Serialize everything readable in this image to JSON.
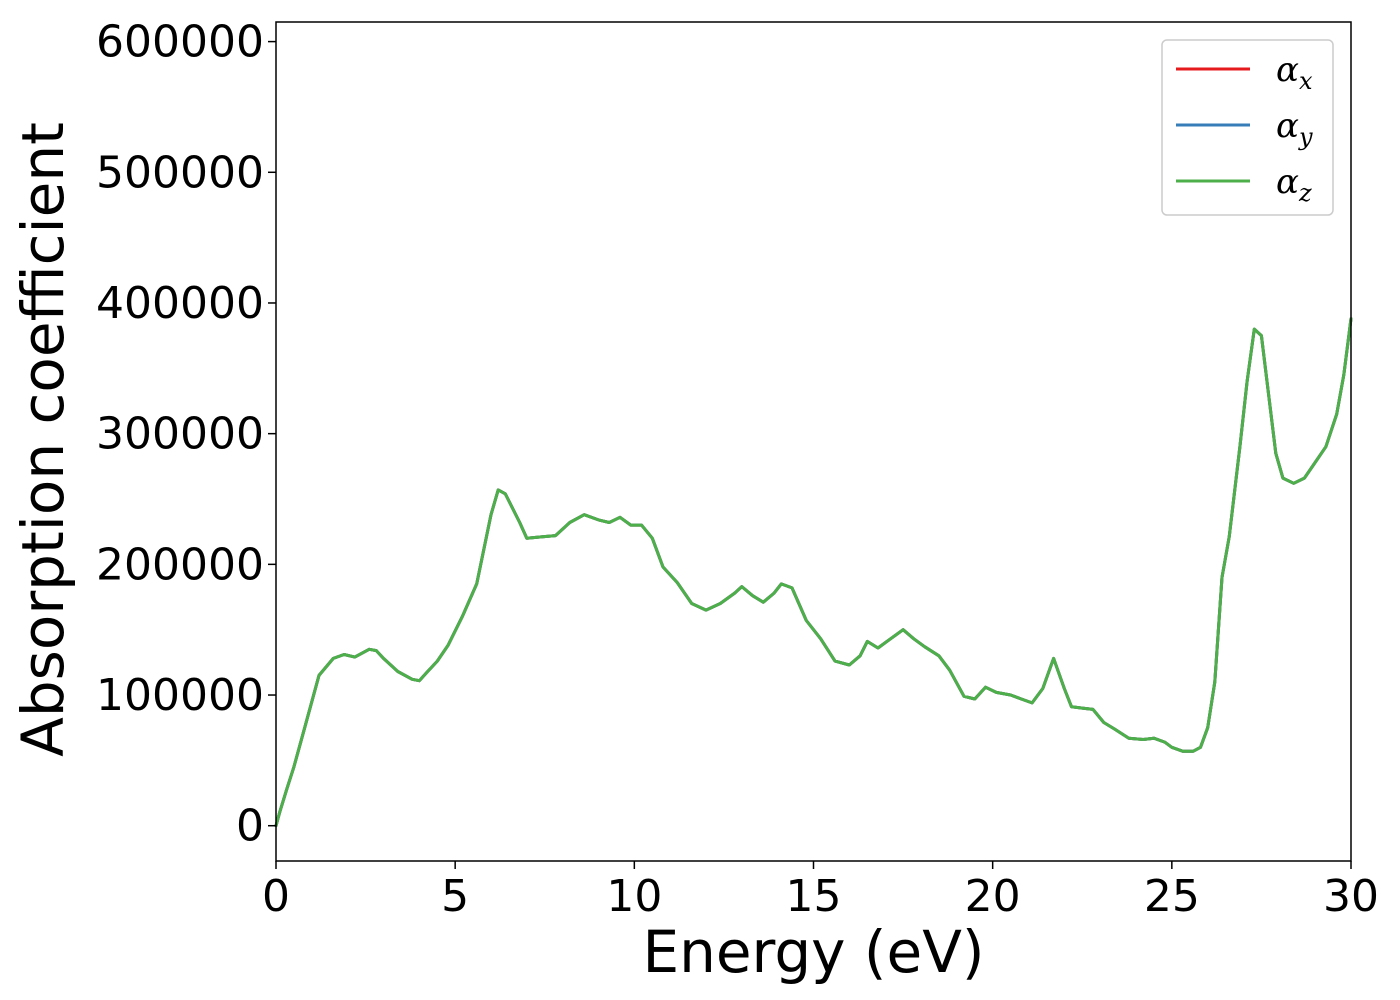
{
  "chart_data": {
    "type": "line",
    "title": "",
    "xlabel": "Energy (eV)",
    "ylabel": "Absorption coefficient",
    "xlim": [
      0,
      30
    ],
    "ylim": [
      -27000,
      615000
    ],
    "xticks": [
      0,
      5,
      10,
      15,
      20,
      25,
      30
    ],
    "yticks": [
      0,
      100000,
      200000,
      300000,
      400000,
      500000,
      600000
    ],
    "grid": false,
    "legend_position": "top-right",
    "x": [
      0,
      0.1,
      0.3,
      0.5,
      0.8,
      1.2,
      1.6,
      1.9,
      2.2,
      2.4,
      2.6,
      2.8,
      3.0,
      3.4,
      3.8,
      4.0,
      4.2,
      4.5,
      4.8,
      5.2,
      5.6,
      6.0,
      6.2,
      6.4,
      6.8,
      7.0,
      7.4,
      7.8,
      8.2,
      8.6,
      9.0,
      9.3,
      9.6,
      9.9,
      10.2,
      10.5,
      10.8,
      11.2,
      11.6,
      12.0,
      12.4,
      12.8,
      13.0,
      13.3,
      13.6,
      13.9,
      14.1,
      14.4,
      14.8,
      15.2,
      15.6,
      16.0,
      16.3,
      16.5,
      16.8,
      17.1,
      17.5,
      17.8,
      18.1,
      18.5,
      18.8,
      19.2,
      19.5,
      19.8,
      20.1,
      20.5,
      20.8,
      21.1,
      21.4,
      21.7,
      22.0,
      22.2,
      22.5,
      22.8,
      23.1,
      23.4,
      23.8,
      24.2,
      24.5,
      24.8,
      25.0,
      25.3,
      25.6,
      25.8,
      26.0,
      26.2,
      26.4,
      26.6,
      26.9,
      27.1,
      27.3,
      27.5,
      27.7,
      27.9,
      28.1,
      28.4,
      28.7,
      29.0,
      29.3,
      29.6,
      29.8,
      30.0
    ],
    "series": [
      {
        "name": "α_x",
        "color": "#e41a1c",
        "values": [
          0,
          10000,
          28000,
          45000,
          75000,
          115000,
          128000,
          131000,
          129000,
          132000,
          135000,
          134000,
          128000,
          118000,
          112000,
          111000,
          117000,
          126000,
          138000,
          160000,
          185000,
          238000,
          257000,
          254000,
          232000,
          220000,
          221000,
          222000,
          232000,
          238000,
          234000,
          232000,
          236000,
          230000,
          230000,
          220000,
          198000,
          186000,
          170000,
          165000,
          170000,
          178000,
          183000,
          176000,
          171000,
          178000,
          185000,
          182000,
          157000,
          143000,
          126000,
          123000,
          130000,
          141000,
          136000,
          142000,
          150000,
          143000,
          137000,
          130000,
          119000,
          99000,
          97000,
          106000,
          102000,
          100000,
          97000,
          94000,
          105000,
          128000,
          105000,
          91000,
          90000,
          89000,
          79000,
          74000,
          67000,
          66000,
          67000,
          64000,
          60000,
          57000,
          57000,
          60000,
          75000,
          110000,
          190000,
          221000,
          290000,
          340000,
          380000,
          375000,
          330000,
          285000,
          266000,
          262000,
          266000,
          278000,
          290000,
          315000,
          345000,
          388000
        ]
      },
      {
        "name": "α_y",
        "color": "#377eb8",
        "values": [
          0,
          10000,
          28000,
          45000,
          75000,
          115000,
          128000,
          131000,
          129000,
          132000,
          135000,
          134000,
          128000,
          118000,
          112000,
          111000,
          117000,
          126000,
          138000,
          160000,
          185000,
          238000,
          257000,
          254000,
          232000,
          220000,
          221000,
          222000,
          232000,
          238000,
          234000,
          232000,
          236000,
          230000,
          230000,
          220000,
          198000,
          186000,
          170000,
          165000,
          170000,
          178000,
          183000,
          176000,
          171000,
          178000,
          185000,
          182000,
          157000,
          143000,
          126000,
          123000,
          130000,
          141000,
          136000,
          142000,
          150000,
          143000,
          137000,
          130000,
          119000,
          99000,
          97000,
          106000,
          102000,
          100000,
          97000,
          94000,
          105000,
          128000,
          105000,
          91000,
          90000,
          89000,
          79000,
          74000,
          67000,
          66000,
          67000,
          64000,
          60000,
          57000,
          57000,
          60000,
          75000,
          110000,
          190000,
          221000,
          290000,
          340000,
          380000,
          375000,
          330000,
          285000,
          266000,
          262000,
          266000,
          278000,
          290000,
          315000,
          345000,
          388000
        ]
      },
      {
        "name": "α_z",
        "color": "#4daf4a",
        "values": [
          0,
          10000,
          28000,
          45000,
          75000,
          115000,
          128000,
          131000,
          129000,
          132000,
          135000,
          134000,
          128000,
          118000,
          112000,
          111000,
          117000,
          126000,
          138000,
          160000,
          185000,
          238000,
          257000,
          254000,
          232000,
          220000,
          221000,
          222000,
          232000,
          238000,
          234000,
          232000,
          236000,
          230000,
          230000,
          220000,
          198000,
          186000,
          170000,
          165000,
          170000,
          178000,
          183000,
          176000,
          171000,
          178000,
          185000,
          182000,
          157000,
          143000,
          126000,
          123000,
          130000,
          141000,
          136000,
          142000,
          150000,
          143000,
          137000,
          130000,
          119000,
          99000,
          97000,
          106000,
          102000,
          100000,
          97000,
          94000,
          105000,
          128000,
          105000,
          91000,
          90000,
          89000,
          79000,
          74000,
          67000,
          66000,
          67000,
          64000,
          60000,
          57000,
          57000,
          60000,
          75000,
          110000,
          190000,
          221000,
          290000,
          340000,
          380000,
          375000,
          330000,
          285000,
          266000,
          262000,
          266000,
          278000,
          290000,
          315000,
          345000,
          388000
        ]
      }
    ]
  }
}
